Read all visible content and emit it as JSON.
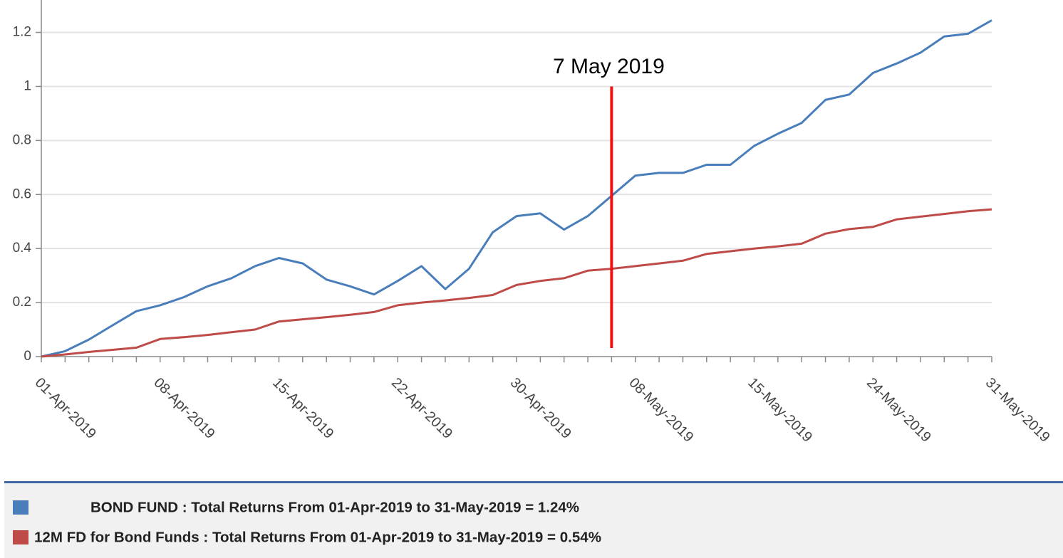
{
  "chart_data": {
    "type": "line",
    "categories": [
      "01-Apr-2019",
      null,
      null,
      null,
      null,
      "08-Apr-2019",
      null,
      null,
      null,
      null,
      "15-Apr-2019",
      null,
      null,
      null,
      null,
      "22-Apr-2019",
      null,
      null,
      null,
      null,
      "30-Apr-2019",
      null,
      null,
      null,
      null,
      "08-May-2019",
      null,
      null,
      null,
      null,
      "15-May-2019",
      null,
      null,
      null,
      null,
      "24-May-2019",
      null,
      null,
      null,
      null,
      "31-May-2019"
    ],
    "series": [
      {
        "name": "BOND FUND : Total Returns From 01-Apr-2019 to 31-May-2019 = 1.24%",
        "color": "#4a7ebb",
        "values": [
          0,
          0.02,
          0.063,
          0.116,
          0.168,
          0.19,
          0.22,
          0.26,
          0.29,
          0.335,
          0.365,
          0.345,
          0.285,
          0.26,
          0.23,
          0.28,
          0.335,
          0.25,
          0.325,
          0.46,
          0.52,
          0.53,
          0.47,
          0.52,
          0.595,
          0.67,
          0.68,
          0.68,
          0.71,
          0.71,
          0.78,
          0.825,
          0.865,
          0.95,
          0.97,
          1.05,
          1.085,
          1.125,
          1.185,
          1.195,
          1.245
        ]
      },
      {
        "name": "12M FD for Bond Funds : Total Returns From 01-Apr-2019 to 31-May-2019 = 0.54%",
        "color": "#be4b48",
        "values": [
          0,
          0.008,
          0.017,
          0.025,
          0.033,
          0.065,
          0.072,
          0.08,
          0.09,
          0.1,
          0.13,
          0.138,
          0.146,
          0.155,
          0.165,
          0.19,
          0.2,
          0.208,
          0.217,
          0.228,
          0.265,
          0.28,
          0.29,
          0.318,
          0.325,
          0.335,
          0.345,
          0.355,
          0.38,
          0.39,
          0.4,
          0.408,
          0.418,
          0.455,
          0.472,
          0.48,
          0.508,
          0.518,
          0.528,
          0.538,
          0.545
        ]
      }
    ],
    "ylim": [
      0,
      1.32
    ],
    "yticks": [
      0,
      0.2,
      0.4,
      0.6,
      0.8,
      1,
      1.2
    ],
    "grid": true,
    "annotations": [
      {
        "text": "7 May 2019",
        "index": 24,
        "color": "#ee1111"
      }
    ],
    "legend": "bottom"
  }
}
